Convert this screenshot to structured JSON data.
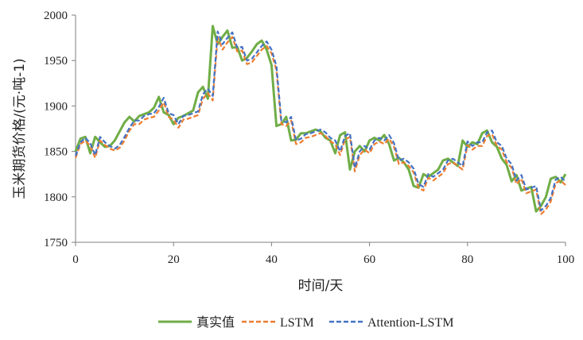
{
  "chart_data": {
    "type": "line",
    "title": "",
    "xlabel": "时间/天",
    "ylabel": "玉米期货价格/(元·吨-1)",
    "xlim": [
      0,
      100
    ],
    "ylim": [
      1750,
      2000
    ],
    "xticks": [
      "0",
      "20",
      "40",
      "60",
      "80",
      "100"
    ],
    "yticks": [
      "1750",
      "1800",
      "1850",
      "1900",
      "1950",
      "2000"
    ],
    "grid": false,
    "legend": "bottom",
    "x": [
      0,
      1,
      2,
      3,
      4,
      5,
      6,
      7,
      8,
      9,
      10,
      11,
      12,
      13,
      14,
      15,
      16,
      17,
      18,
      19,
      20,
      21,
      22,
      23,
      24,
      25,
      26,
      27,
      28,
      29,
      30,
      31,
      32,
      33,
      34,
      35,
      36,
      37,
      38,
      39,
      40,
      41,
      42,
      43,
      44,
      45,
      46,
      47,
      48,
      49,
      50,
      51,
      52,
      53,
      54,
      55,
      56,
      57,
      58,
      59,
      60,
      61,
      62,
      63,
      64,
      65,
      66,
      67,
      68,
      69,
      70,
      71,
      72,
      73,
      74,
      75,
      76,
      77,
      78,
      79,
      80,
      81,
      82,
      83,
      84,
      85,
      86,
      87,
      88,
      89,
      90,
      91,
      92,
      93,
      94,
      95,
      96,
      97,
      98,
      99,
      100
    ],
    "series": [
      {
        "name": "真实值",
        "color": "#70ad47",
        "dash": "solid",
        "values": [
          1850,
          1864,
          1866,
          1848,
          1866,
          1860,
          1855,
          1856,
          1862,
          1872,
          1882,
          1888,
          1883,
          1889,
          1891,
          1893,
          1898,
          1910,
          1893,
          1890,
          1880,
          1887,
          1889,
          1892,
          1895,
          1915,
          1921,
          1908,
          1988,
          1968,
          1976,
          1983,
          1964,
          1965,
          1950,
          1953,
          1960,
          1968,
          1972,
          1962,
          1945,
          1878,
          1880,
          1888,
          1862,
          1863,
          1870,
          1870,
          1872,
          1874,
          1872,
          1865,
          1862,
          1848,
          1868,
          1871,
          1830,
          1850,
          1856,
          1850,
          1862,
          1865,
          1862,
          1868,
          1858,
          1840,
          1843,
          1838,
          1830,
          1812,
          1810,
          1825,
          1822,
          1826,
          1830,
          1840,
          1842,
          1838,
          1834,
          1862,
          1855,
          1860,
          1858,
          1870,
          1873,
          1860,
          1855,
          1842,
          1835,
          1817,
          1824,
          1807,
          1809,
          1811,
          1784,
          1790,
          1800,
          1820,
          1822,
          1816,
          1825
        ]
      },
      {
        "name": "LSTM",
        "color": "#ed7d31",
        "dash": "dashed",
        "values": [
          1843,
          1858,
          1862,
          1856,
          1843,
          1862,
          1857,
          1853,
          1851,
          1854,
          1862,
          1873,
          1880,
          1880,
          1885,
          1887,
          1888,
          1895,
          1904,
          1888,
          1885,
          1876,
          1885,
          1886,
          1888,
          1890,
          1908,
          1914,
          1906,
          1976,
          1962,
          1970,
          1976,
          1960,
          1961,
          1946,
          1948,
          1955,
          1962,
          1966,
          1958,
          1939,
          1880,
          1878,
          1884,
          1858,
          1860,
          1865,
          1866,
          1868,
          1870,
          1867,
          1861,
          1858,
          1846,
          1863,
          1866,
          1828,
          1846,
          1852,
          1848,
          1858,
          1861,
          1858,
          1864,
          1855,
          1836,
          1838,
          1834,
          1827,
          1810,
          1807,
          1821,
          1818,
          1822,
          1826,
          1836,
          1838,
          1834,
          1830,
          1857,
          1852,
          1856,
          1856,
          1867,
          1869,
          1856,
          1852,
          1838,
          1832,
          1814,
          1820,
          1804,
          1806,
          1808,
          1781,
          1786,
          1795,
          1815,
          1818,
          1813
        ]
      },
      {
        "name": "Attention-LSTM",
        "color": "#4472c4",
        "dash": "dashed",
        "values": [
          1845,
          1860,
          1865,
          1859,
          1846,
          1866,
          1860,
          1856,
          1853,
          1857,
          1866,
          1876,
          1884,
          1884,
          1889,
          1891,
          1892,
          1899,
          1909,
          1892,
          1890,
          1880,
          1889,
          1890,
          1892,
          1894,
          1913,
          1919,
          1911,
          1982,
          1968,
          1975,
          1981,
          1964,
          1965,
          1950,
          1952,
          1959,
          1966,
          1971,
          1962,
          1944,
          1884,
          1882,
          1888,
          1862,
          1864,
          1869,
          1870,
          1872,
          1874,
          1871,
          1865,
          1862,
          1850,
          1867,
          1870,
          1832,
          1850,
          1856,
          1852,
          1862,
          1865,
          1862,
          1868,
          1859,
          1840,
          1842,
          1838,
          1831,
          1814,
          1811,
          1825,
          1822,
          1826,
          1830,
          1840,
          1842,
          1838,
          1834,
          1861,
          1856,
          1860,
          1860,
          1871,
          1873,
          1860,
          1856,
          1842,
          1836,
          1818,
          1824,
          1808,
          1810,
          1812,
          1785,
          1790,
          1799,
          1819,
          1822,
          1817
        ]
      }
    ]
  }
}
